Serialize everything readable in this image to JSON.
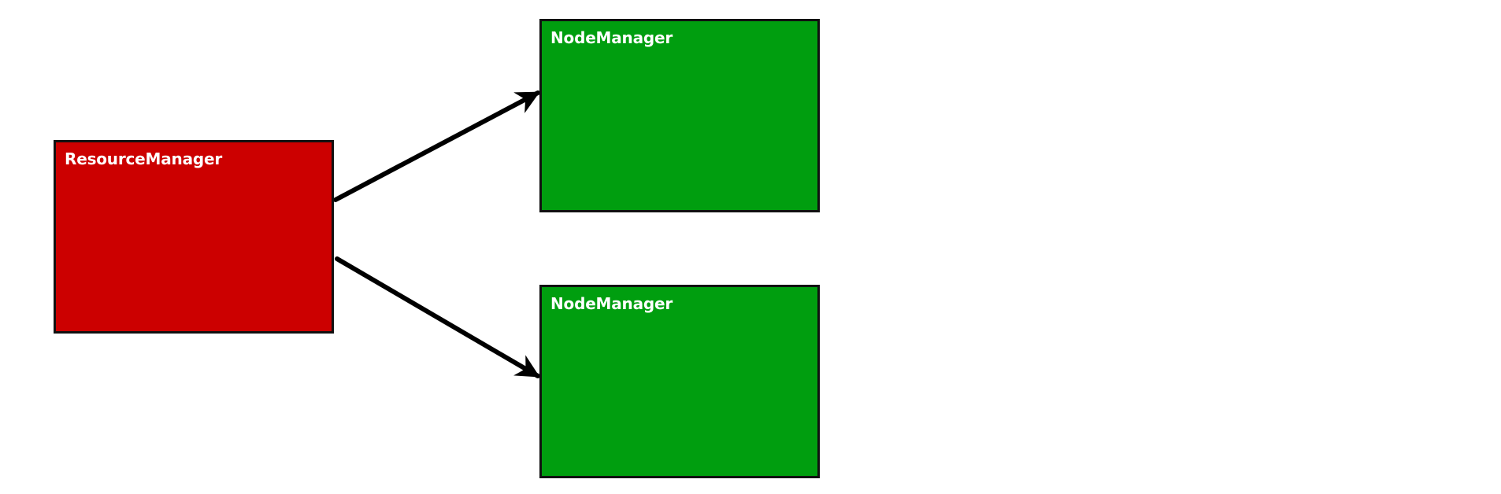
{
  "diagram": {
    "nodes": [
      {
        "id": "resource-manager",
        "label": "ResourceManager",
        "color": "#cc0000"
      },
      {
        "id": "node-manager-1",
        "label": "NodeManager",
        "color": "#009e0f"
      },
      {
        "id": "node-manager-2",
        "label": "NodeManager",
        "color": "#009e0f"
      }
    ],
    "edges": [
      {
        "from": "resource-manager",
        "to": "node-manager-1",
        "directed": true
      },
      {
        "from": "resource-manager",
        "to": "node-manager-2",
        "directed": true
      }
    ],
    "colors": {
      "resource_manager": "#cc0000",
      "node_manager": "#009e0f",
      "border": "#111111",
      "arrow": "#000000"
    }
  }
}
